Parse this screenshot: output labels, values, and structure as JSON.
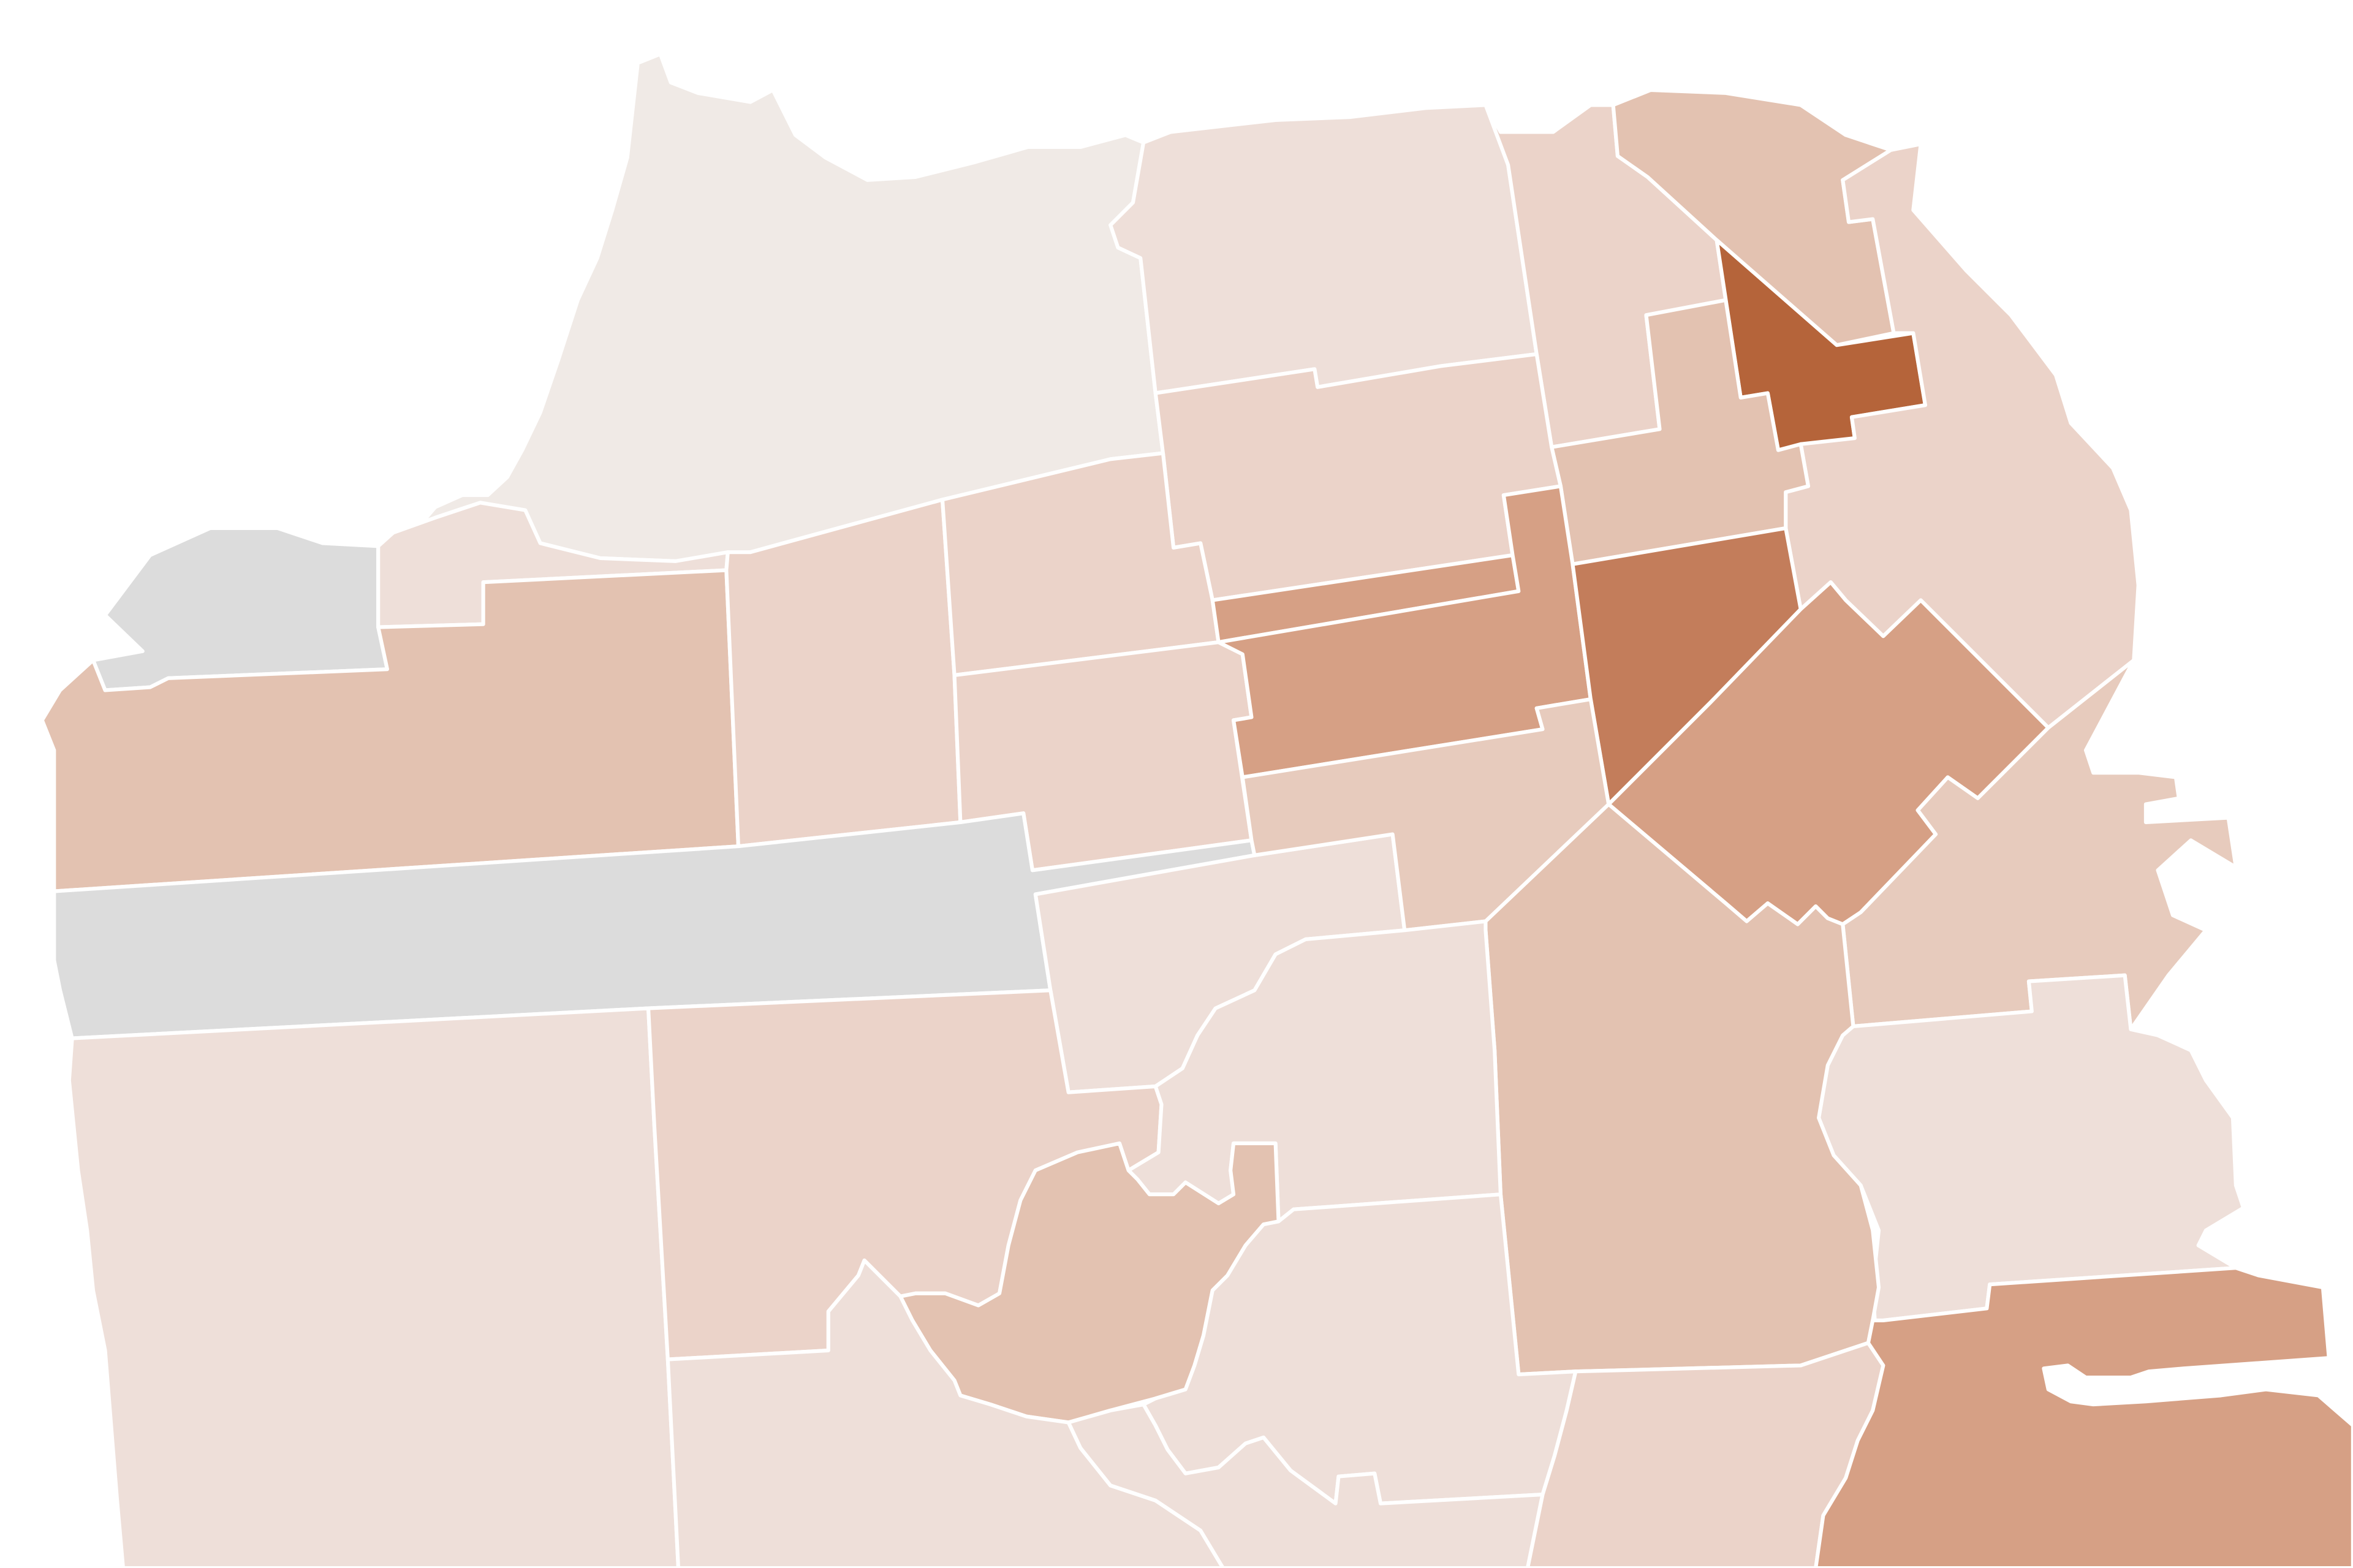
{
  "map": {
    "kind": "choropleth",
    "region_label": "",
    "legend": null,
    "no_data_color": "#dcdcdc",
    "colors": {
      "level_0": "#f0eae6",
      "level_1": "#eedfd9",
      "level_2": "#ebd3c9",
      "level_3": "#e7cbbd",
      "level_4": "#e3c2b1",
      "level_5": "#d6a085",
      "level_6": "#c37d5b",
      "level_7": "#b5643a",
      "no_data": "#dcdcdc",
      "border": "#ffffff"
    },
    "areas": [
      {
        "name": "presidio-area",
        "level": "level_0"
      },
      {
        "name": "sea-cliff-no-data-area",
        "level": "no_data"
      },
      {
        "name": "lincoln-park-strip-area",
        "level": "level_1"
      },
      {
        "name": "marina-area",
        "level": "level_1"
      },
      {
        "name": "russian-hill-area",
        "level": "level_2"
      },
      {
        "name": "north-beach-area",
        "level": "level_4"
      },
      {
        "name": "chinatown-area",
        "level": "level_7"
      },
      {
        "name": "financial-district-area",
        "level": "level_2"
      },
      {
        "name": "nob-hill-area",
        "level": "level_4"
      },
      {
        "name": "pacific-heights-area",
        "level": "level_2"
      },
      {
        "name": "outer-richmond-area",
        "level": "level_4"
      },
      {
        "name": "inner-richmond-area",
        "level": "level_2"
      },
      {
        "name": "presidio-heights-area",
        "level": "level_2"
      },
      {
        "name": "laurel-heights-area",
        "level": "level_2"
      },
      {
        "name": "western-addition-area",
        "level": "level_5"
      },
      {
        "name": "western-addition-north-area",
        "level": "level_5"
      },
      {
        "name": "polk-gulch-area",
        "level": "level_5"
      },
      {
        "name": "tenderloin-area",
        "level": "level_6"
      },
      {
        "name": "golden-gate-park-no-data-area",
        "level": "no_data"
      },
      {
        "name": "haight-ashbury-area",
        "level": "level_1"
      },
      {
        "name": "hayes-valley-area",
        "level": "level_3"
      },
      {
        "name": "south-of-market-area",
        "level": "level_5"
      },
      {
        "name": "south-beach-area",
        "level": "level_3"
      },
      {
        "name": "mission-bay-area",
        "level": "level_1"
      },
      {
        "name": "mission-area",
        "level": "level_4"
      },
      {
        "name": "outer-sunset-area",
        "level": "level_1"
      },
      {
        "name": "inner-sunset-area",
        "level": "level_2"
      },
      {
        "name": "castro-area",
        "level": "level_1"
      },
      {
        "name": "twin-peaks-area",
        "level": "level_4"
      },
      {
        "name": "noe-valley-area",
        "level": "level_1"
      },
      {
        "name": "west-portal-area",
        "level": "level_1"
      },
      {
        "name": "glen-park-area",
        "level": "level_1"
      },
      {
        "name": "bernal-heights-area",
        "level": "level_2"
      },
      {
        "name": "bayview-area",
        "level": "level_5"
      }
    ]
  }
}
